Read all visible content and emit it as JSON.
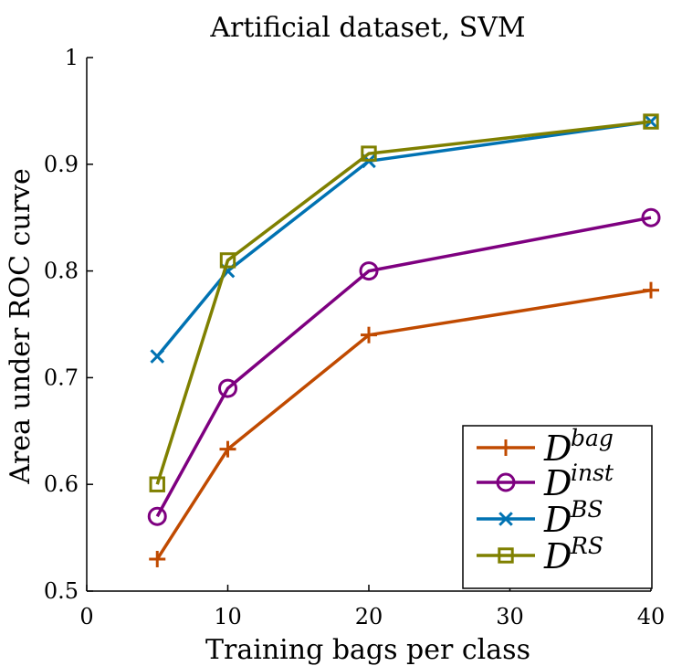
{
  "chart_data": {
    "type": "line",
    "title": "Artificial dataset, SVM",
    "xlabel": "Training bags per class",
    "ylabel": "Area under ROC curve",
    "xlim": [
      0,
      40
    ],
    "ylim": [
      0.5,
      1
    ],
    "x_ticks": [
      0,
      10,
      20,
      30,
      40
    ],
    "y_ticks": [
      0.5,
      0.6,
      0.7,
      0.8,
      0.9,
      1
    ],
    "x_tick_labels": [
      "0",
      "10",
      "20",
      "30",
      "40"
    ],
    "y_tick_labels": [
      "0.5",
      "0.6",
      "0.7",
      "0.8",
      "0.9",
      "1"
    ],
    "grid": false,
    "legend_position": "bottom-right",
    "x": [
      5,
      10,
      20,
      40
    ],
    "series": [
      {
        "name": "D",
        "sup": "bag",
        "color": "#c04a00",
        "marker": "plus",
        "values": [
          0.53,
          0.633,
          0.74,
          0.782
        ]
      },
      {
        "name": "D",
        "sup": "inst",
        "color": "#7e0080",
        "marker": "circle",
        "values": [
          0.57,
          0.69,
          0.8,
          0.85
        ]
      },
      {
        "name": "D",
        "sup": "BS",
        "color": "#0072b2",
        "marker": "x",
        "values": [
          0.72,
          0.8,
          0.903,
          0.94
        ]
      },
      {
        "name": "D",
        "sup": "RS",
        "color": "#7f8000",
        "marker": "square",
        "values": [
          0.6,
          0.81,
          0.91,
          0.94
        ]
      }
    ]
  }
}
